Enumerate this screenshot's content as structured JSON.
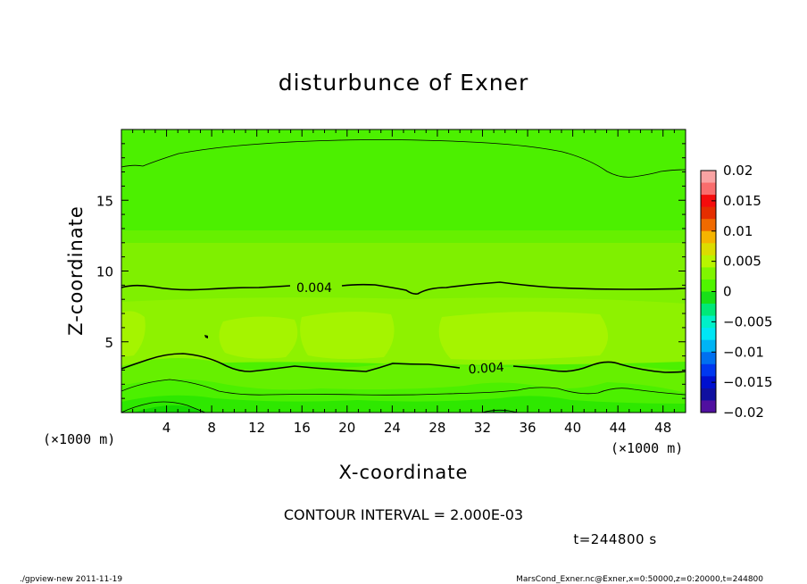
{
  "chart_data": {
    "type": "heatmap",
    "title": "disturbunce of Exner",
    "xlabel": "X-coordinate",
    "ylabel": "Z-coordinate",
    "x_unit": "(×1000 m)",
    "y_unit": "(×1000 m)",
    "xlim": [
      0,
      50
    ],
    "ylim": [
      0,
      20
    ],
    "x_ticks": [
      4,
      8,
      12,
      16,
      20,
      24,
      28,
      32,
      36,
      40,
      44,
      48
    ],
    "y_ticks": [
      5,
      10,
      15
    ],
    "contour_labels": [
      {
        "text": "0.004",
        "x": 15.8,
        "z": 8.9
      },
      {
        "text": "0.004",
        "x": 32.8,
        "z": 3.1
      }
    ],
    "colorbar": {
      "ticks": [
        "0.02",
        "0.015",
        "0.01",
        "0.005",
        "0",
        "−0.005",
        "−0.01",
        "−0.015",
        "−0.02"
      ],
      "min": -0.02,
      "max": 0.02,
      "colors": [
        "#f9a3a3",
        "#f96d6d",
        "#f50c0c",
        "#e52e00",
        "#f06a00",
        "#f5b400",
        "#dcdc00",
        "#b8f500",
        "#80f500",
        "#50f500",
        "#18e018",
        "#00e878",
        "#00f0c8",
        "#00e6f5",
        "#00b4f5",
        "#0070f0",
        "#0038f0",
        "#0010d0",
        "#1010a0",
        "#5010a0"
      ]
    },
    "bands": [
      {
        "z": [
          17.8,
          20.0
        ],
        "value": 0.003
      },
      {
        "z": [
          12.1,
          17.8
        ],
        "value": 0.0035
      },
      {
        "z": [
          9.0,
          12.1
        ],
        "value": 0.0045
      },
      {
        "z": [
          3.5,
          9.0
        ],
        "value": 0.005
      },
      {
        "z": [
          2.0,
          3.5
        ],
        "value": 0.0035
      },
      {
        "z": [
          0.0,
          2.0
        ],
        "value": 0.001
      }
    ],
    "contour_interval_text": "CONTOUR INTERVAL = 2.000E-03",
    "time_text": "t=244800 s"
  },
  "footer": {
    "left": "./gpview-new   2011-11-19",
    "right": "MarsCond_Exner.nc@Exner,x=0:50000,z=0:20000,t=244800"
  }
}
